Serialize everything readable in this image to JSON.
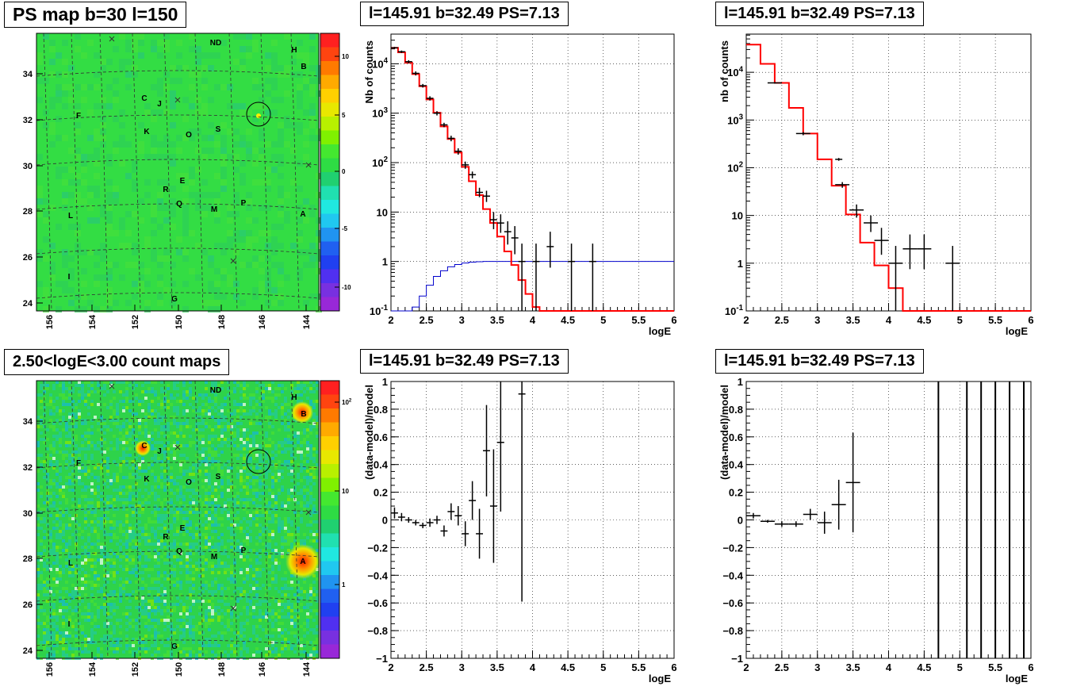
{
  "panels": {
    "tl_title": "PS map b=30 l=150",
    "bl_title": "2.50<logE<3.00 count maps",
    "tm_title": "l=145.91 b=32.49 PS=7.13",
    "tr_title": "l=145.91 b=32.49 PS=7.13",
    "bm_title": "l=145.91 b=32.49 PS=7.13",
    "br_title": "l=145.91 b=32.49 PS=7.13"
  },
  "colors": {
    "data": "#000000",
    "model": "#ff0000",
    "ratio_curve": "#0000cc",
    "map_base": "#33dd44"
  },
  "chart_data": [
    {
      "type": "heatmap",
      "id": "ps_map",
      "title": "PS map b=30 l=150",
      "x_ticks": [
        "156",
        "154",
        "152",
        "150",
        "148",
        "146",
        "144"
      ],
      "y_ticks": [
        "24",
        "26",
        "28",
        "30",
        "32",
        "34"
      ],
      "colorbar_ticks": [
        "10",
        "5",
        "0",
        "-5",
        "-10"
      ],
      "sources": [
        "ND",
        "H",
        "B",
        "C",
        "J",
        "F",
        "K",
        "O",
        "S",
        "E",
        "R",
        "Q",
        "M",
        "P",
        "A",
        "L",
        "I",
        "G"
      ]
    },
    {
      "type": "heatmap",
      "id": "count_map",
      "title": "2.50<logE<3.00 count maps",
      "x_ticks": [
        "156",
        "154",
        "152",
        "150",
        "148",
        "146",
        "144"
      ],
      "y_ticks": [
        "24",
        "26",
        "28",
        "30",
        "32",
        "34"
      ],
      "colorbar_ticks": [
        "10^2",
        "10",
        "1"
      ],
      "sources": [
        "ND",
        "H",
        "B",
        "C",
        "J",
        "F",
        "K",
        "O",
        "S",
        "E",
        "R",
        "Q",
        "M",
        "P",
        "A",
        "L",
        "I",
        "G"
      ]
    },
    {
      "type": "line",
      "id": "spectrum_mid",
      "title": "l=145.91 b=32.49 PS=7.13",
      "xlabel": "logE",
      "ylabel": "Nb of counts",
      "xlim": [
        2,
        6
      ],
      "ylim_log": [
        -1,
        4.6
      ],
      "x_ticks": [
        "2",
        "2.5",
        "3",
        "3.5",
        "4",
        "4.5",
        "5",
        "5.5",
        "6"
      ],
      "y_ticks": [
        "10^-1",
        "1",
        "10",
        "10^2",
        "10^3",
        "10^4"
      ],
      "model_edges": [
        2,
        2.1,
        2.2,
        2.3,
        2.4,
        2.5,
        2.6,
        2.7,
        2.8,
        2.9,
        3,
        3.1,
        3.2,
        3.3,
        3.4,
        3.5,
        3.6,
        3.7,
        3.8,
        3.9,
        4,
        4.1,
        4.2,
        6
      ],
      "model_values": [
        21000,
        17000,
        10500,
        6200,
        3500,
        1900,
        1020,
        540,
        300,
        160,
        82,
        42,
        22,
        11.5,
        6,
        3.2,
        1.6,
        0.85,
        0.42,
        0.22,
        0.12,
        0.1,
        0.1
      ],
      "data_points": [
        {
          "x": 2.05,
          "y": 21000,
          "lo": 20000,
          "hi": 22000
        },
        {
          "x": 2.15,
          "y": 17500,
          "lo": 16500,
          "hi": 18500
        },
        {
          "x": 2.25,
          "y": 11000,
          "lo": 10200,
          "hi": 11800
        },
        {
          "x": 2.35,
          "y": 6400,
          "lo": 5800,
          "hi": 7000
        },
        {
          "x": 2.45,
          "y": 3600,
          "lo": 3300,
          "hi": 3900
        },
        {
          "x": 2.55,
          "y": 2000,
          "lo": 1800,
          "hi": 2200
        },
        {
          "x": 2.65,
          "y": 1000,
          "lo": 900,
          "hi": 1100
        },
        {
          "x": 2.75,
          "y": 580,
          "lo": 520,
          "hi": 640
        },
        {
          "x": 2.85,
          "y": 310,
          "lo": 270,
          "hi": 350
        },
        {
          "x": 2.95,
          "y": 170,
          "lo": 145,
          "hi": 195
        },
        {
          "x": 3.05,
          "y": 90,
          "lo": 75,
          "hi": 105
        },
        {
          "x": 3.15,
          "y": 57,
          "lo": 48,
          "hi": 66
        },
        {
          "x": 3.25,
          "y": 25,
          "lo": 20,
          "hi": 31
        },
        {
          "x": 3.35,
          "y": 21,
          "lo": 16,
          "hi": 27
        },
        {
          "x": 3.45,
          "y": 7,
          "lo": 4.5,
          "hi": 10
        },
        {
          "x": 3.55,
          "y": 6,
          "lo": 3.8,
          "hi": 9
        },
        {
          "x": 3.65,
          "y": 4,
          "lo": 2.2,
          "hi": 6.5
        },
        {
          "x": 3.75,
          "y": 3,
          "lo": 1.4,
          "hi": 5.2
        },
        {
          "x": 3.85,
          "y": 1,
          "lo": 0.1,
          "hi": 2.3
        },
        {
          "x": 4.05,
          "y": 1,
          "lo": 0.1,
          "hi": 2.3
        },
        {
          "x": 4.25,
          "y": 2,
          "lo": 0.75,
          "hi": 4
        },
        {
          "x": 4.55,
          "y": 1,
          "lo": 0.1,
          "hi": 2.3
        },
        {
          "x": 4.85,
          "y": 1,
          "lo": 0.1,
          "hi": 2.3
        }
      ],
      "data_halfwidths": [
        0.05,
        0.05,
        0.05,
        0.05,
        0.05,
        0.05,
        0.05,
        0.05,
        0.05,
        0.05,
        0.05,
        0.05,
        0.05,
        0.05,
        0.05,
        0.05,
        0.05,
        0.05,
        0.05,
        0.05,
        0.05,
        0.05,
        0.05
      ],
      "blue_edges": [
        2,
        2.1,
        2.2,
        2.3,
        2.4,
        2.5,
        2.6,
        2.7,
        2.8,
        2.9,
        3,
        3.1,
        3.2,
        3.3,
        3.4,
        3.5,
        6
      ],
      "blue_values": [
        0.03,
        0.05,
        0.08,
        0.12,
        0.2,
        0.33,
        0.5,
        0.65,
        0.78,
        0.87,
        0.93,
        0.97,
        0.99,
        1,
        1,
        1
      ]
    },
    {
      "type": "line",
      "id": "spectrum_right",
      "title": "l=145.91 b=32.49 PS=7.13",
      "xlabel": "logE",
      "ylabel": "nb of counts",
      "xlim": [
        2,
        6
      ],
      "ylim_log": [
        -1,
        4.8
      ],
      "x_ticks": [
        "2",
        "2.5",
        "3",
        "3.5",
        "4",
        "4.5",
        "5",
        "5.5",
        "6"
      ],
      "y_ticks": [
        "10^-1",
        "1",
        "10",
        "10^2",
        "10^3",
        "10^4"
      ],
      "model_edges": [
        2,
        2.2,
        2.4,
        2.6,
        2.8,
        3,
        3.2,
        3.4,
        3.6,
        3.8,
        4,
        4.2,
        6
      ],
      "model_values": [
        38000,
        15000,
        6000,
        1800,
        520,
        150,
        42,
        10.5,
        2.7,
        0.9,
        0.3,
        0.1
      ],
      "data_points": [
        {
          "x": 2.4,
          "y": 6000,
          "lo": 5800,
          "hi": 6200
        },
        {
          "x": 2.8,
          "y": 520,
          "lo": 480,
          "hi": 560
        },
        {
          "x": 3.3,
          "y": 150,
          "lo": 140,
          "hi": 160
        },
        {
          "x": 3.35,
          "y": 44,
          "lo": 38,
          "hi": 50
        },
        {
          "x": 3.55,
          "y": 13,
          "lo": 9,
          "hi": 17
        },
        {
          "x": 3.75,
          "y": 7,
          "lo": 4.5,
          "hi": 10
        },
        {
          "x": 3.9,
          "y": 3,
          "lo": 1.5,
          "hi": 5.5
        },
        {
          "x": 4.1,
          "y": 1,
          "lo": 0.1,
          "hi": 2.3
        },
        {
          "x": 4.3,
          "y": 2,
          "lo": 0.75,
          "hi": 4
        },
        {
          "x": 4.5,
          "y": 2,
          "lo": 0.75,
          "hi": 4
        },
        {
          "x": 4.9,
          "y": 1,
          "lo": 0.1,
          "hi": 2.3
        }
      ],
      "data_halfwidths": [
        0.1,
        0.1,
        0.05,
        0.1,
        0.1,
        0.1,
        0.1,
        0.1,
        0.1,
        0.1,
        0.1
      ]
    },
    {
      "type": "scatter",
      "id": "ratio_mid",
      "title": "l=145.91 b=32.49 PS=7.13",
      "xlabel": "logE",
      "ylabel": "(data-model)/model",
      "xlim": [
        2,
        6
      ],
      "ylim": [
        -1,
        1
      ],
      "x_ticks": [
        "2",
        "2.5",
        "3",
        "3.5",
        "4",
        "4.5",
        "5",
        "5.5",
        "6"
      ],
      "y_ticks": [
        "-1",
        "-0.8",
        "-0.6",
        "-0.4",
        "-0.2",
        "0",
        "0.2",
        "0.4",
        "0.6",
        "0.8",
        "1"
      ],
      "points": [
        {
          "x": 2.05,
          "y": 0.05,
          "err": 0.04
        },
        {
          "x": 2.15,
          "y": 0.02,
          "err": 0.03
        },
        {
          "x": 2.25,
          "y": 0.0,
          "err": 0.02
        },
        {
          "x": 2.35,
          "y": -0.02,
          "err": 0.02
        },
        {
          "x": 2.45,
          "y": -0.04,
          "err": 0.02
        },
        {
          "x": 2.55,
          "y": -0.02,
          "err": 0.03
        },
        {
          "x": 2.65,
          "y": 0.0,
          "err": 0.03
        },
        {
          "x": 2.75,
          "y": -0.08,
          "err": 0.04
        },
        {
          "x": 2.85,
          "y": 0.06,
          "err": 0.06
        },
        {
          "x": 2.95,
          "y": 0.03,
          "err": 0.07
        },
        {
          "x": 3.05,
          "y": -0.1,
          "err": 0.09
        },
        {
          "x": 3.15,
          "y": 0.14,
          "err": 0.14
        },
        {
          "x": 3.25,
          "y": -0.1,
          "err": 0.18
        },
        {
          "x": 3.35,
          "y": 0.5,
          "err": 0.33
        },
        {
          "x": 3.45,
          "y": 0.1,
          "err": 0.41
        },
        {
          "x": 3.55,
          "y": 0.56,
          "err": 0.5
        },
        {
          "x": 3.85,
          "y": 0.91,
          "err": 1.5
        }
      ]
    },
    {
      "type": "scatter",
      "id": "ratio_right",
      "title": "l=145.91 b=32.49 PS=7.13",
      "xlabel": "logE",
      "ylabel": "(data-model)/model",
      "xlim": [
        2,
        6
      ],
      "ylim": [
        -1,
        1
      ],
      "x_ticks": [
        "2",
        "2.5",
        "3",
        "3.5",
        "4",
        "4.5",
        "5",
        "5.5",
        "6"
      ],
      "y_ticks": [
        "-1",
        "-0.8",
        "-0.6",
        "-0.4",
        "-0.2",
        "0",
        "0.2",
        "0.4",
        "0.6",
        "0.8",
        "1"
      ],
      "points": [
        {
          "x": 2.1,
          "y": 0.03,
          "err": 0.02,
          "hw": 0.1
        },
        {
          "x": 2.3,
          "y": -0.01,
          "err": 0.01,
          "hw": 0.1
        },
        {
          "x": 2.5,
          "y": -0.03,
          "err": 0.02,
          "hw": 0.1
        },
        {
          "x": 2.7,
          "y": -0.03,
          "err": 0.02,
          "hw": 0.1
        },
        {
          "x": 2.9,
          "y": 0.04,
          "err": 0.04,
          "hw": 0.1
        },
        {
          "x": 3.1,
          "y": -0.02,
          "err": 0.08,
          "hw": 0.1
        },
        {
          "x": 3.3,
          "y": 0.11,
          "err": 0.18,
          "hw": 0.1
        },
        {
          "x": 3.5,
          "y": 0.27,
          "err": 0.36,
          "hw": 0.1
        }
      ],
      "vertical_lines_x": [
        4.7,
        5.1,
        5.3,
        5.5,
        5.7,
        5.9
      ]
    }
  ]
}
